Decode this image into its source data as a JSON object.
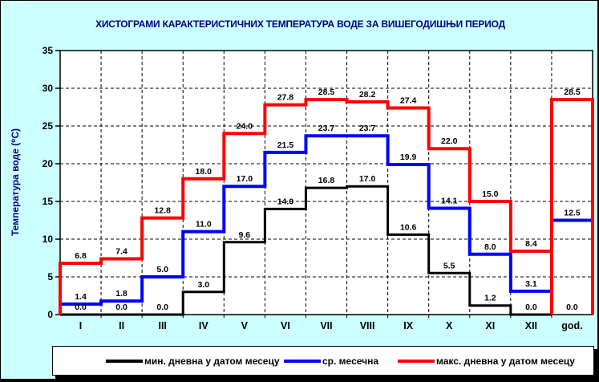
{
  "frame": {
    "background": "#CCFFFF",
    "border_color": "#000000",
    "plot_background": "#FFFFFF",
    "title_color": "#000080"
  },
  "chart_data": {
    "type": "line",
    "subtype": "step-histogram",
    "title": "ХИСТОГРАМИ КАРАКТЕРИСТИЧНИХ ТЕМПЕРАТУРА ВОДЕ ЗА ВИШЕГОДИШЊИ ПЕРИОД",
    "xlabel": "",
    "ylabel": "Температура воде (⁰C)",
    "ylim": [
      0,
      35
    ],
    "y_ticks": [
      0,
      5,
      10,
      15,
      20,
      25,
      30,
      35
    ],
    "grid": true,
    "legend_position": "bottom",
    "categories": [
      "I",
      "II",
      "III",
      "IV",
      "V",
      "VI",
      "VII",
      "VIII",
      "IX",
      "X",
      "XI",
      "XII",
      "god."
    ],
    "series": [
      {
        "key": "min",
        "name": "мин. дневна у датом месецу",
        "color": "#000000",
        "annual_box": false,
        "values": [
          0.0,
          0.0,
          0.0,
          3.0,
          9.6,
          14.0,
          16.8,
          17.0,
          10.6,
          5.5,
          1.2,
          0.0,
          0.0
        ]
      },
      {
        "key": "mean",
        "name": "ср. месечна",
        "color": "#0000FF",
        "annual_box": false,
        "values": [
          1.4,
          1.8,
          5.0,
          11.0,
          17.0,
          21.5,
          23.7,
          23.7,
          19.9,
          14.1,
          8.0,
          3.1,
          12.5
        ]
      },
      {
        "key": "max",
        "name": "макс. дневна у датом месецу",
        "color": "#FF0000",
        "annual_box": true,
        "values": [
          6.8,
          7.4,
          12.8,
          18.0,
          24.0,
          27.8,
          28.5,
          28.2,
          27.4,
          22.0,
          15.0,
          8.4,
          28.5
        ]
      }
    ]
  }
}
